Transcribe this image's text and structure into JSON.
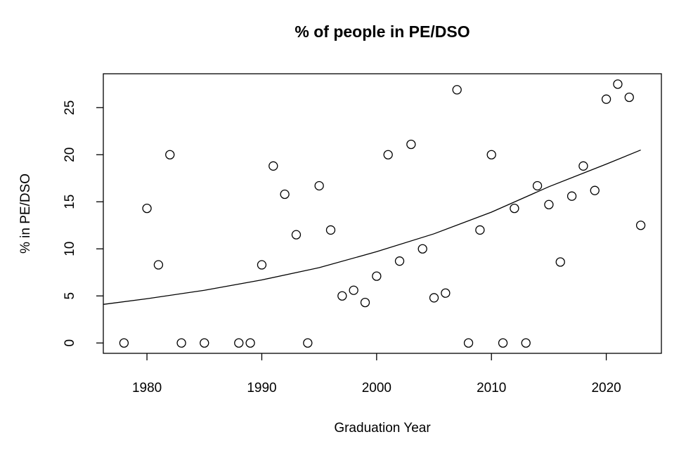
{
  "chart_data": {
    "type": "scatter",
    "title": "% of people in PE/DSO",
    "xlabel": "Graduation Year",
    "ylabel": "% in PE/DSO",
    "x": [
      1978,
      1980,
      1981,
      1982,
      1983,
      1985,
      1988,
      1989,
      1990,
      1991,
      1992,
      1993,
      1994,
      1995,
      1996,
      1997,
      1998,
      1999,
      2000,
      2001,
      2002,
      2003,
      2004,
      2005,
      2006,
      2007,
      2008,
      2009,
      2010,
      2011,
      2012,
      2013,
      2014,
      2015,
      2016,
      2017,
      2018,
      2019,
      2020,
      2021,
      2022,
      2023
    ],
    "values": [
      0,
      14.3,
      8.3,
      20,
      0,
      0,
      0,
      0,
      8.3,
      18.8,
      15.8,
      11.5,
      0,
      16.7,
      12,
      5,
      5.6,
      4.3,
      7.1,
      20,
      8.7,
      21.1,
      10,
      4.8,
      5.3,
      26.9,
      0,
      12,
      20,
      0,
      14.3,
      0,
      16.7,
      14.7,
      8.6,
      15.6,
      18.8,
      16.2,
      25.9,
      27.5,
      26.1,
      12.5
    ],
    "trend": {
      "x": [
        1976.2,
        1980,
        1985,
        1990,
        1995,
        2000,
        2005,
        2010,
        2015,
        2020,
        2023
      ],
      "values": [
        4.1,
        4.7,
        5.6,
        6.7,
        8.0,
        9.7,
        11.6,
        13.9,
        16.6,
        19.0,
        20.5
      ]
    },
    "xlim": [
      1976.2,
      2024.8
    ],
    "ylim": [
      -1.1,
      28.6
    ],
    "xticks": [
      1980,
      1990,
      2000,
      2010,
      2020
    ],
    "yticks": [
      0,
      5,
      10,
      15,
      20,
      25
    ]
  }
}
